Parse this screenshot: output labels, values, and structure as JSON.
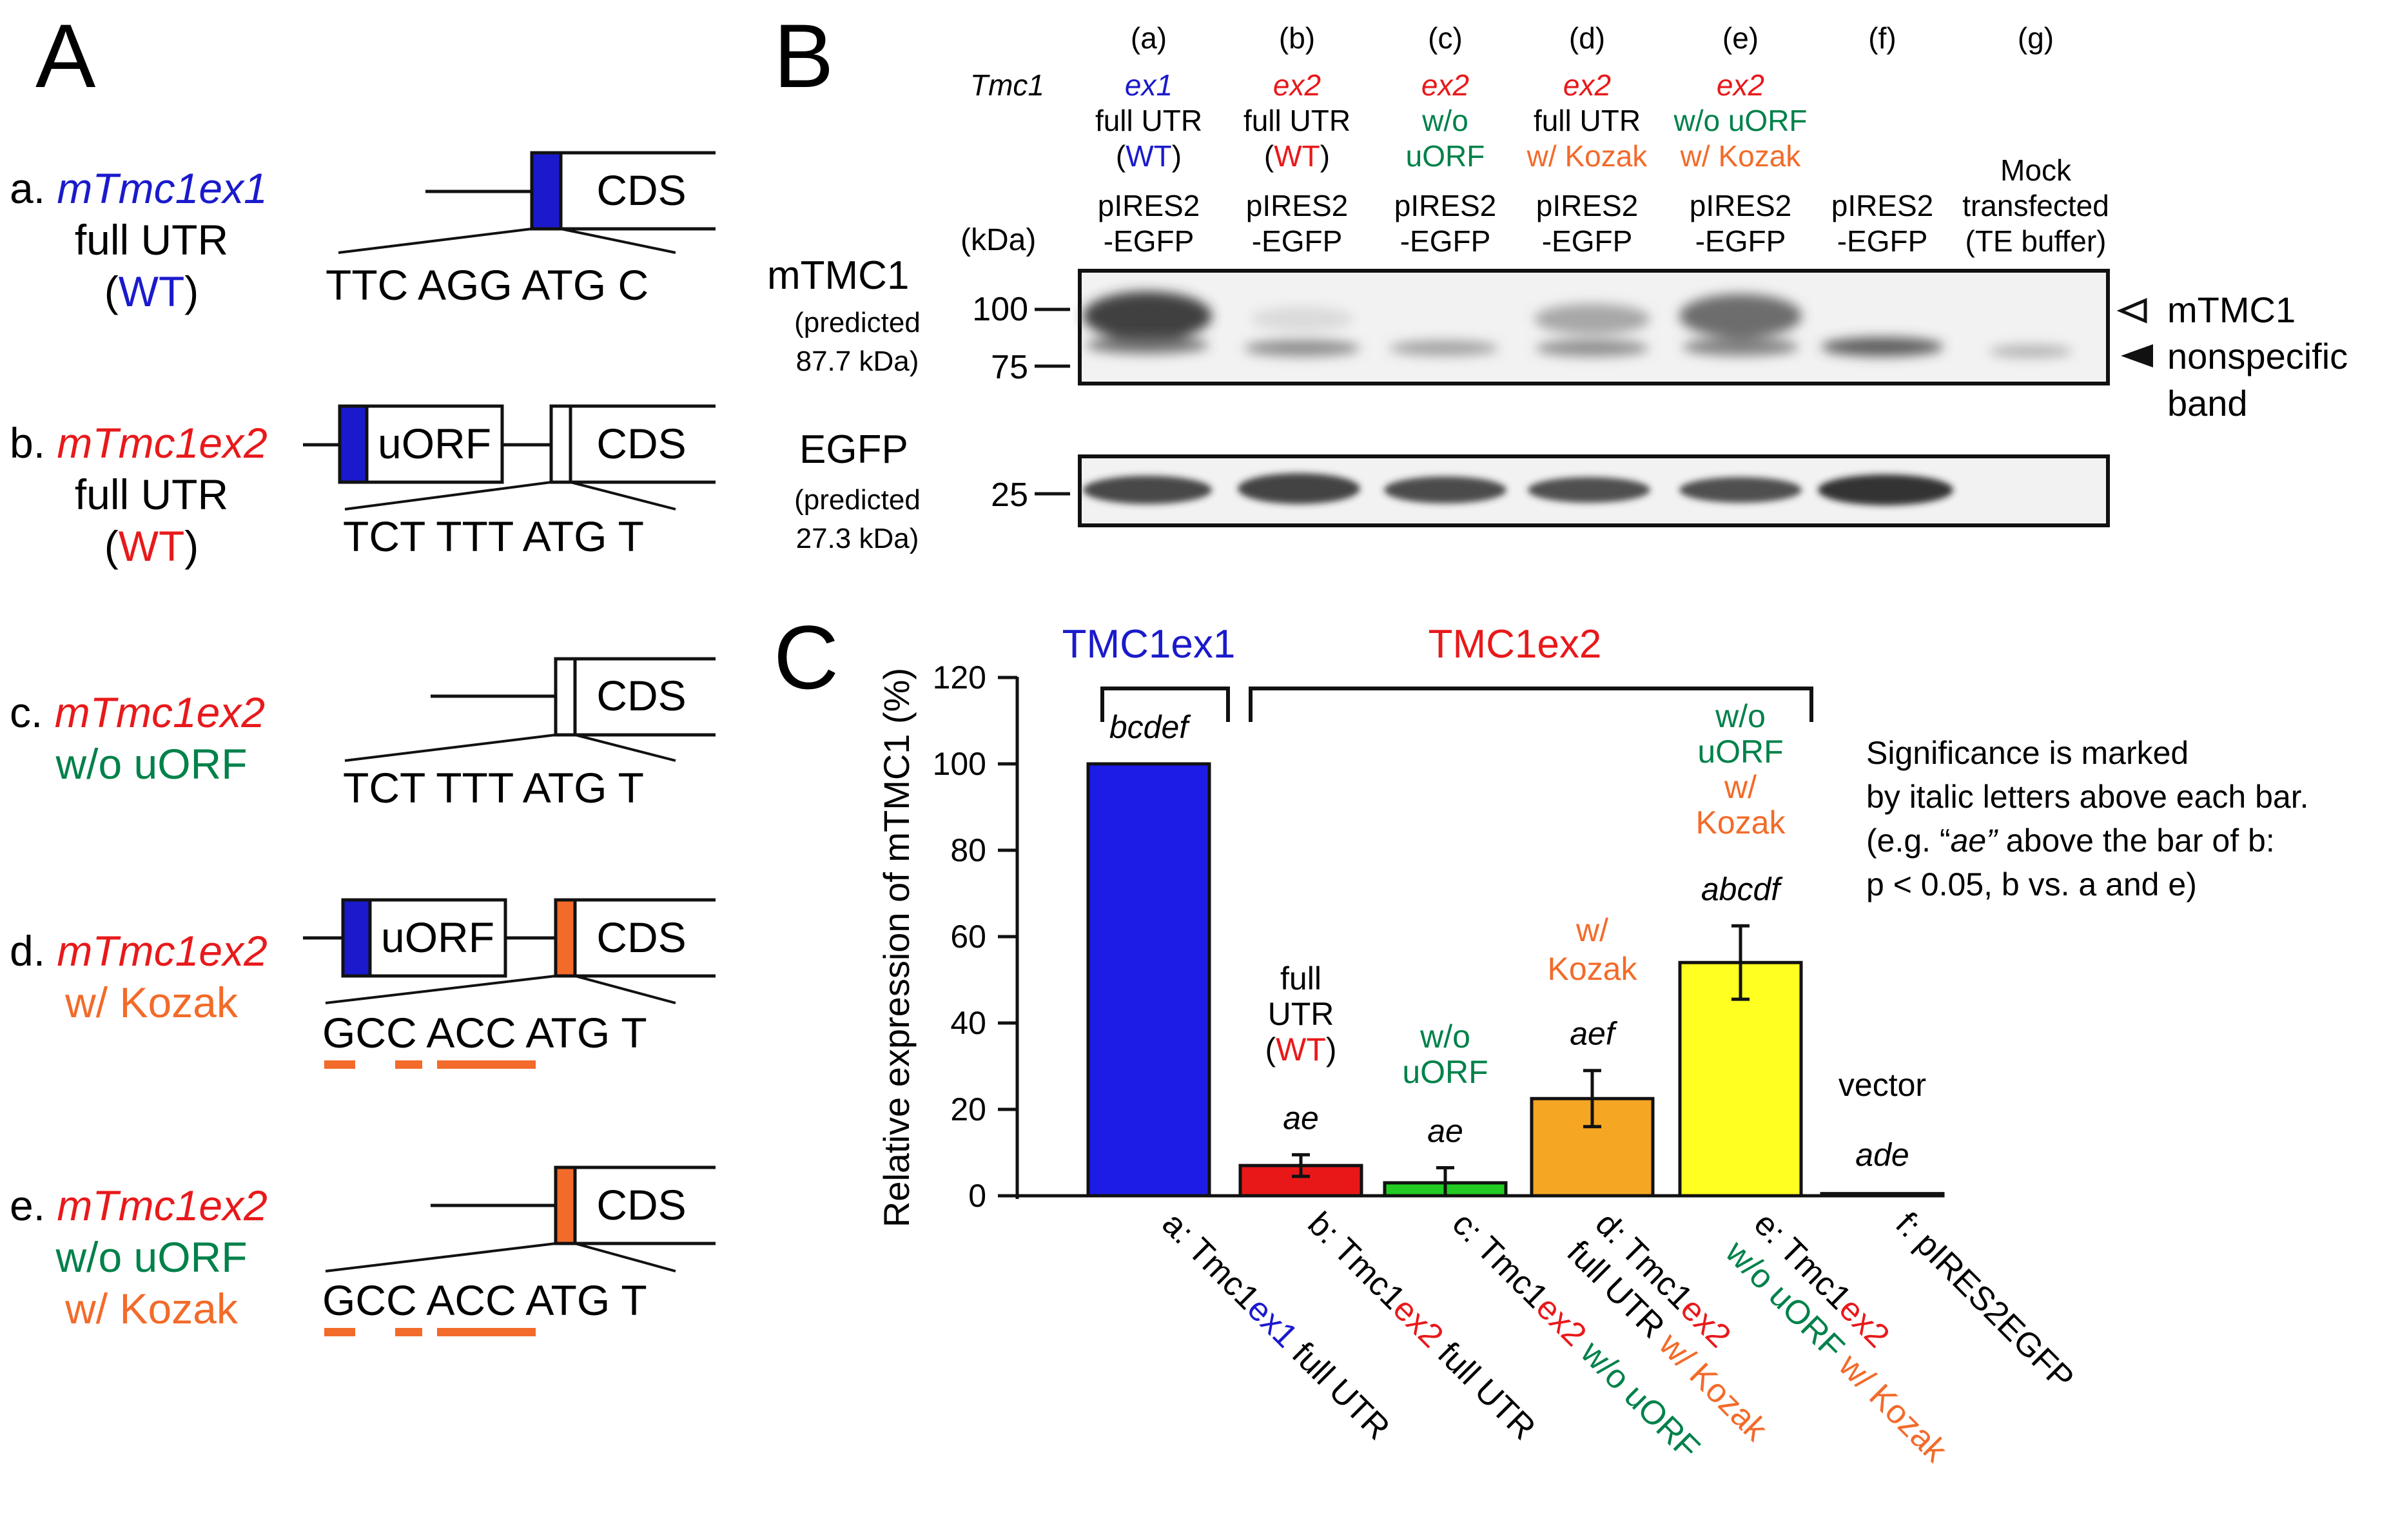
{
  "colors": {
    "blue": "#1a1acc",
    "red": "#e8191b",
    "green": "#00814a",
    "orange": "#f26b2a",
    "bar_a": "#1c1ce6",
    "bar_b": "#e81818",
    "bar_c": "#22cc22",
    "bar_d": "#f5a623",
    "bar_e": "#ffff22",
    "bar_f": "#333333"
  },
  "panel_labels": {
    "A": "A",
    "B": "B",
    "C": "C"
  },
  "panelA": {
    "constructs": [
      {
        "prefix": "a. ",
        "name": "mTmc1ex1",
        "line2": "full UTR",
        "line3_open": "(",
        "line3_wt": "WT",
        "line3_close": ")",
        "seq": "TTC AGG ATG C"
      },
      {
        "prefix": "b. ",
        "name": "mTmc1ex2",
        "line2": "full UTR",
        "line3_open": "(",
        "line3_wt": "WT",
        "line3_close": ")",
        "seq": "TCT TTT ATG T",
        "uorf": "uORF"
      },
      {
        "prefix": "c. ",
        "name": "mTmc1ex2",
        "line2": "w/o uORF",
        "seq": "TCT TTT ATG T"
      },
      {
        "prefix": "d. ",
        "name": "mTmc1ex2",
        "line2": "w/ Kozak",
        "seq": "GCC ACC ATG T",
        "uorf": "uORF"
      },
      {
        "prefix": "e. ",
        "name": "mTmc1ex2",
        "line2": "w/o uORF",
        "line3": "w/ Kozak",
        "seq": "GCC ACC ATG T"
      }
    ],
    "cds": "CDS"
  },
  "panelB": {
    "tmc1_label": "Tmc1",
    "kda": "(kDa)",
    "lanes": [
      {
        "letter": "(a)",
        "ex": "ex1",
        "l2": "full UTR",
        "l3_open": "(",
        "l3_wt": "WT",
        "l3_close": ")",
        "v1": "pIRES2",
        "v2": "-EGFP"
      },
      {
        "letter": "(b)",
        "ex": "ex2",
        "l2": "full UTR",
        "l3_open": "(",
        "l3_wt": "WT",
        "l3_close": ")",
        "v1": "pIRES2",
        "v2": "-EGFP"
      },
      {
        "letter": "(c)",
        "ex": "ex2",
        "l2": "w/o",
        "l3": "uORF",
        "v1": "pIRES2",
        "v2": "-EGFP"
      },
      {
        "letter": "(d)",
        "ex": "ex2",
        "l2": "full UTR",
        "l3": "w/ Kozak",
        "v1": "pIRES2",
        "v2": "-EGFP"
      },
      {
        "letter": "(e)",
        "ex": "ex2",
        "l2": "w/o uORF",
        "l3": "w/ Kozak",
        "v1": "pIRES2",
        "v2": "-EGFP"
      },
      {
        "letter": "(f)",
        "v1": "pIRES2",
        "v2": "-EGFP"
      },
      {
        "letter": "(g)",
        "m1": "Mock",
        "m2": "transfected",
        "m3": "(TE buffer)"
      }
    ],
    "mtmc1": {
      "name": "mTMC1",
      "pred1": "(predicted",
      "pred2": "87.7 kDa)"
    },
    "egfp": {
      "name": "EGFP",
      "pred1": "(predicted",
      "pred2": "27.3 kDa)"
    },
    "markers": {
      "m100": "100",
      "m75": "75",
      "m25": "25"
    },
    "arrows": {
      "open": "mTMC1",
      "filled1": "nonspecific",
      "filled2": "band"
    }
  },
  "chart_data": {
    "type": "bar",
    "ylabel": "Relative expression of mTMC1 (%)",
    "ylim": [
      0,
      120
    ],
    "yticks": [
      "0",
      "20",
      "40",
      "60",
      "80",
      "100",
      "120"
    ],
    "group1": "TMC1ex1",
    "group2": "TMC1ex2",
    "values": [
      100,
      7,
      3,
      22.5,
      54,
      0.5
    ],
    "errors": [
      0,
      2.5,
      3.5,
      6.5,
      8.5,
      0.5
    ],
    "sig": [
      "bcdef",
      "ae",
      "ae",
      "aef",
      "abcdf",
      "ade"
    ],
    "annotations": {
      "b": [
        "full",
        "UTR",
        "(",
        "WT",
        ")"
      ],
      "c": [
        "w/o",
        "uORF"
      ],
      "d": [
        "w/",
        "Kozak"
      ],
      "e": [
        "w/o",
        "uORF",
        "w/",
        "Kozak"
      ],
      "f": [
        "vector"
      ]
    },
    "xlabels": [
      {
        "p1": "a: Tmc1",
        "p2": "ex1",
        "p3": " full UTR"
      },
      {
        "p1": "b: Tmc1",
        "p2": "ex2",
        "p3": " full UTR"
      },
      {
        "p1": "c: Tmc1",
        "p2": "ex2",
        "p3": " w/o uORF"
      },
      {
        "p1": "d: Tmc1",
        "p2": "ex2",
        "p3a": "full UTR",
        "p3b": " w/ Kozak"
      },
      {
        "p1": "e: Tmc1",
        "p2": "ex2",
        "p3a": "w/o uORF",
        "p3b": " w/ Kozak"
      },
      {
        "p1": "f: pIRES2EGFP"
      }
    ],
    "note": [
      "Significance is marked",
      "by italic letters above each bar.",
      "(e.g. “",
      "ae”",
      " above the bar of b:",
      "p < 0.05, b vs. a and e)"
    ]
  }
}
